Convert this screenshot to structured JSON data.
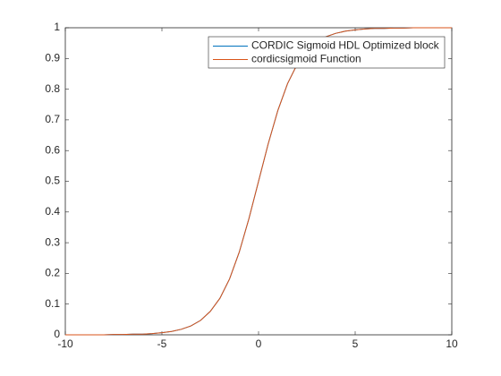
{
  "chart_data": {
    "type": "line",
    "x": [
      -10,
      -9.5,
      -9,
      -8.5,
      -8,
      -7.5,
      -7,
      -6.5,
      -6,
      -5.5,
      -5,
      -4.5,
      -4,
      -3.5,
      -3,
      -2.5,
      -2,
      -1.5,
      -1,
      -0.5,
      0,
      0.5,
      1,
      1.5,
      2,
      2.5,
      3,
      3.5,
      4,
      4.5,
      5,
      5.5,
      6,
      6.5,
      7,
      7.5,
      8,
      8.5,
      9,
      9.5,
      10
    ],
    "series": [
      {
        "name": "CORDIC Sigmoid HDL Optimized block",
        "color": "#0072BD",
        "values": [
          0,
          0,
          0,
          0,
          0,
          0.001,
          0.001,
          0.002,
          0.002,
          0.004,
          0.007,
          0.011,
          0.018,
          0.029,
          0.047,
          0.076,
          0.119,
          0.182,
          0.269,
          0.378,
          0.5,
          0.622,
          0.731,
          0.818,
          0.881,
          0.924,
          0.953,
          0.971,
          0.982,
          0.989,
          0.993,
          0.996,
          0.998,
          0.998,
          0.999,
          0.999,
          1,
          1,
          1,
          1,
          1
        ]
      },
      {
        "name": "cordicsigmoid Function",
        "color": "#D95319",
        "values": [
          0,
          0,
          0,
          0,
          0,
          0.001,
          0.001,
          0.002,
          0.002,
          0.004,
          0.007,
          0.011,
          0.018,
          0.029,
          0.047,
          0.076,
          0.119,
          0.182,
          0.269,
          0.378,
          0.5,
          0.622,
          0.731,
          0.818,
          0.881,
          0.924,
          0.953,
          0.971,
          0.982,
          0.989,
          0.993,
          0.996,
          0.998,
          0.998,
          0.999,
          0.999,
          1,
          1,
          1,
          1,
          1
        ]
      }
    ],
    "xlim": [
      -10,
      10
    ],
    "xticks": [
      -10,
      -5,
      0,
      5,
      10
    ],
    "ylim": [
      0,
      1
    ],
    "yticks": [
      0,
      0.1,
      0.2,
      0.3,
      0.4,
      0.5,
      0.6,
      0.7,
      0.8,
      0.9,
      1
    ],
    "grid": false,
    "legend": "northeast"
  }
}
